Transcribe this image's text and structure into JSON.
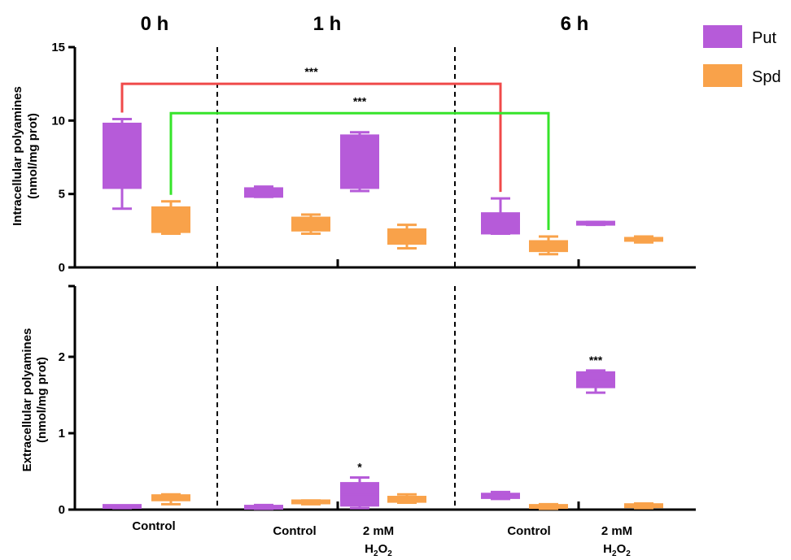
{
  "chart_data": [
    {
      "type": "box",
      "panel": "top",
      "ylabel": [
        "Intracellular polyamines",
        "(nmol/mg prot)"
      ],
      "ylim": [
        0,
        15
      ],
      "yticks": [
        0,
        5,
        10,
        15
      ],
      "grid": false,
      "time_labels": [
        "0 h",
        "1 h",
        "6 h"
      ],
      "series": [
        {
          "name": "Put",
          "color": "#b65bd9",
          "boxes": [
            {
              "group": "0 h Control",
              "min": 4.0,
              "q1": 5.4,
              "median": 7.5,
              "q3": 9.8,
              "max": 10.1
            },
            {
              "group": "1 h Control",
              "min": 4.8,
              "q1": 4.8,
              "median": 5.1,
              "q3": 5.4,
              "max": 5.5
            },
            {
              "group": "1 h 2 mM H2O2",
              "min": 5.2,
              "q1": 5.4,
              "median": 7.2,
              "q3": 9.0,
              "max": 9.2
            },
            {
              "group": "6 h Control",
              "min": 2.3,
              "q1": 2.3,
              "median": 2.6,
              "q3": 3.7,
              "max": 4.7
            },
            {
              "group": "6 h 2 mM H2O2",
              "min": 2.9,
              "q1": 2.9,
              "median": 3.0,
              "q3": 3.1,
              "max": 3.1
            }
          ]
        },
        {
          "name": "Spd",
          "color": "#f9a24a",
          "boxes": [
            {
              "group": "0 h Control",
              "min": 2.3,
              "q1": 2.4,
              "median": 3.2,
              "q3": 4.1,
              "max": 4.5
            },
            {
              "group": "1 h Control",
              "min": 2.3,
              "q1": 2.5,
              "median": 3.0,
              "q3": 3.4,
              "max": 3.6
            },
            {
              "group": "1 h 2 mM H2O2",
              "min": 1.3,
              "q1": 1.6,
              "median": 2.0,
              "q3": 2.6,
              "max": 2.9
            },
            {
              "group": "6 h Control",
              "min": 0.9,
              "q1": 1.1,
              "median": 1.4,
              "q3": 1.8,
              "max": 2.1
            },
            {
              "group": "6 h 2 mM H2O2",
              "min": 1.7,
              "q1": 1.8,
              "median": 1.9,
              "q3": 2.0,
              "max": 2.1
            }
          ]
        }
      ],
      "annotations": [
        {
          "text": "***",
          "color": "#f04a4a",
          "from": "0 h Control Put",
          "to": "6 h Control Put",
          "level": 12.5
        },
        {
          "text": "***",
          "color": "#36e42a",
          "from": "0 h Control Spd",
          "to": "6 h Control Spd",
          "level": 10.5
        }
      ]
    },
    {
      "type": "box",
      "panel": "bottom",
      "ylabel": [
        "Extracellular polyamines",
        "(nmol/mg prot)"
      ],
      "ylim": [
        0,
        3
      ],
      "yticks": [
        0,
        1,
        2
      ],
      "grid": false,
      "series": [
        {
          "name": "Put",
          "color": "#b65bd9",
          "boxes": [
            {
              "group": "0 h Control",
              "min": 0.02,
              "q1": 0.02,
              "median": 0.03,
              "q3": 0.04,
              "max": 0.05
            },
            {
              "group": "1 h Control",
              "min": 0.01,
              "q1": 0.01,
              "median": 0.03,
              "q3": 0.05,
              "max": 0.06
            },
            {
              "group": "1 h 2 mM H2O2",
              "min": 0.02,
              "q1": 0.05,
              "median": 0.2,
              "q3": 0.35,
              "max": 0.42
            },
            {
              "group": "6 h Control",
              "min": 0.14,
              "q1": 0.15,
              "median": 0.18,
              "q3": 0.21,
              "max": 0.23
            },
            {
              "group": "6 h 2 mM H2O2",
              "min": 1.53,
              "q1": 1.6,
              "median": 1.7,
              "q3": 1.8,
              "max": 1.82
            }
          ]
        },
        {
          "name": "Spd",
          "color": "#f9a24a",
          "boxes": [
            {
              "group": "0 h Control",
              "min": 0.07,
              "q1": 0.12,
              "median": 0.16,
              "q3": 0.19,
              "max": 0.2
            },
            {
              "group": "1 h Control",
              "min": 0.07,
              "q1": 0.08,
              "median": 0.09,
              "q3": 0.11,
              "max": 0.12
            },
            {
              "group": "1 h 2 mM H2O2",
              "min": 0.09,
              "q1": 0.1,
              "median": 0.13,
              "q3": 0.17,
              "max": 0.2
            },
            {
              "group": "6 h Control",
              "min": 0.01,
              "q1": 0.02,
              "median": 0.04,
              "q3": 0.06,
              "max": 0.07
            },
            {
              "group": "6 h 2 mM H2O2",
              "min": 0.02,
              "q1": 0.03,
              "median": 0.05,
              "q3": 0.07,
              "max": 0.08
            }
          ]
        }
      ],
      "annotations": [
        {
          "text": "*",
          "target": "1 h 2 mM H2O2 Put"
        },
        {
          "text": "***",
          "target": "6 h 2 mM H2O2 Put"
        }
      ]
    }
  ],
  "x_group_labels": [
    {
      "text": "Control",
      "sub": ""
    },
    {
      "text": "Control",
      "sub": ""
    },
    {
      "text": "2 mM",
      "line2": "H",
      "sub": "2",
      "line2b": "O",
      "sub2": "2"
    },
    {
      "text": "Control",
      "sub": ""
    },
    {
      "text": "2 mM",
      "line2": "H",
      "sub": "2",
      "line2b": "O",
      "sub2": "2"
    }
  ],
  "legend": {
    "placement": "top-right",
    "items": [
      {
        "label": "Put",
        "color": "#b65bd9"
      },
      {
        "label": "Spd",
        "color": "#f9a24a"
      }
    ]
  }
}
